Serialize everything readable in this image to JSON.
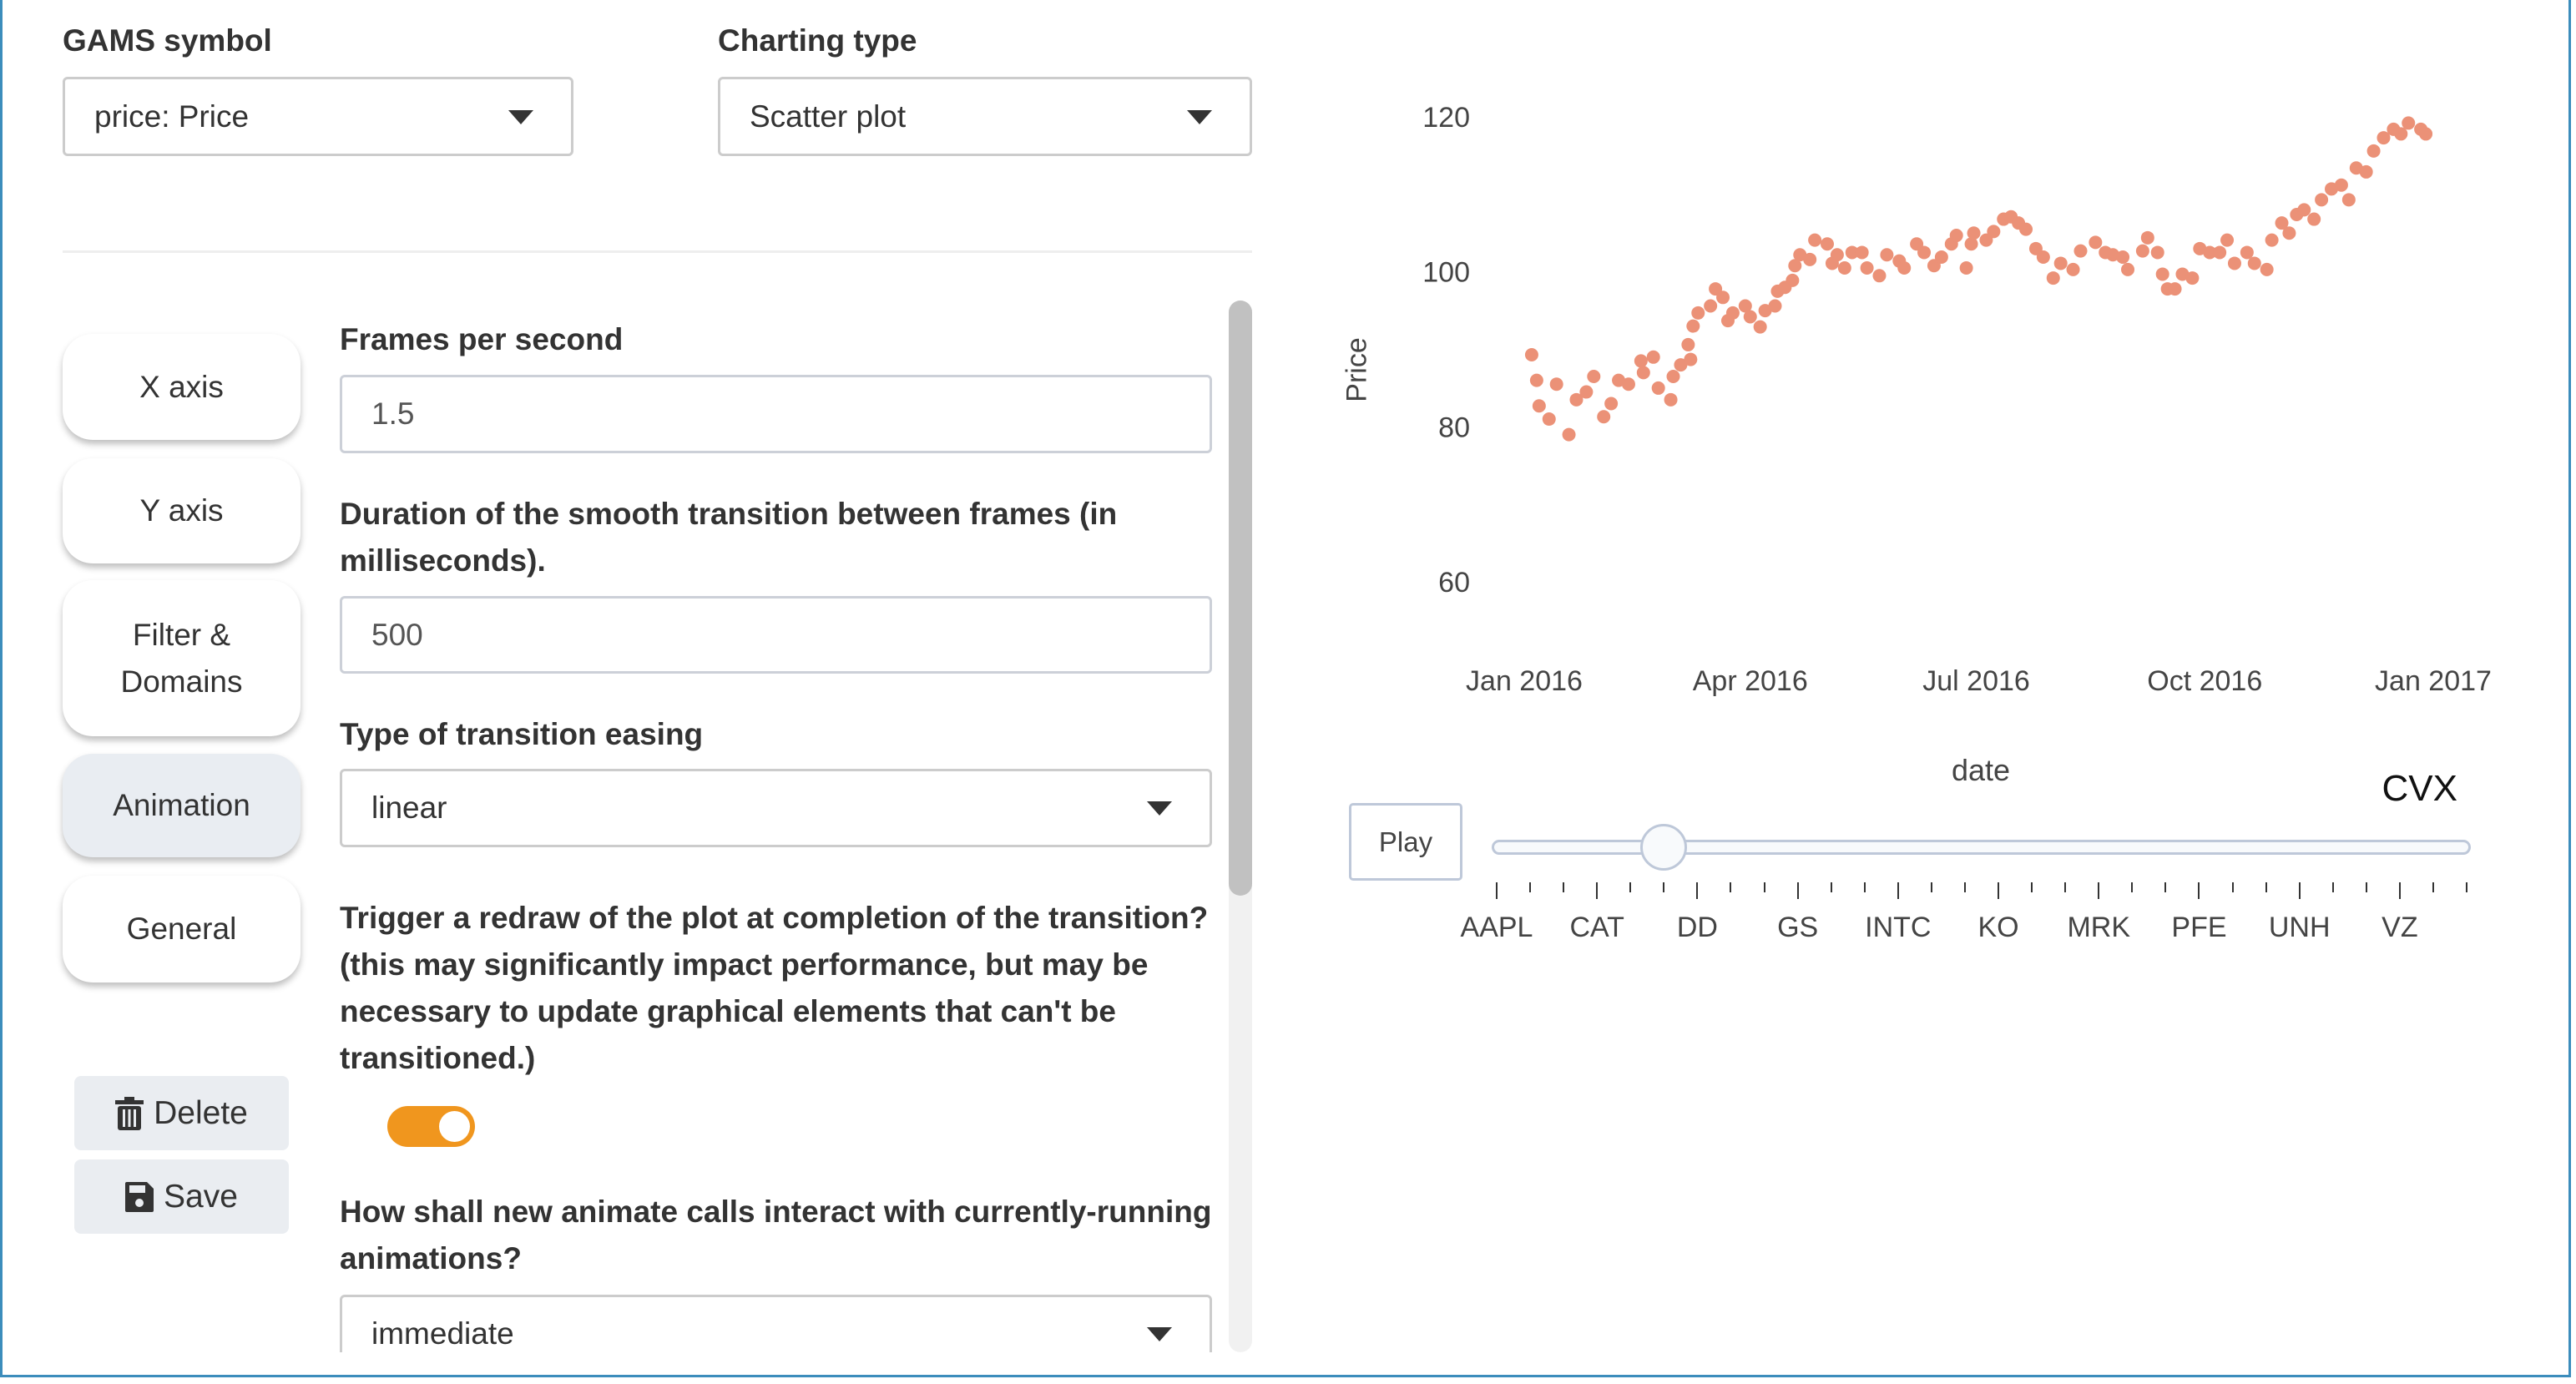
{
  "header": {
    "symbol_label": "GAMS symbol",
    "symbol_value": "price: Price",
    "chart_type_label": "Charting type",
    "chart_type_value": "Scatter plot"
  },
  "tabs": [
    {
      "label": "X axis",
      "active": false
    },
    {
      "label": "Y axis",
      "active": false
    },
    {
      "label": "Filter & Domains",
      "active": false
    },
    {
      "label": "Animation",
      "active": true
    },
    {
      "label": "General",
      "active": false
    }
  ],
  "actions": {
    "delete_label": "Delete",
    "delete_icon": "trash-icon",
    "save_label": "Save",
    "save_icon": "floppy-disk-icon"
  },
  "form": {
    "fps_label": "Frames per second",
    "fps_value": "1.5",
    "duration_label": "Duration of the smooth transition between frames (in milliseconds).",
    "duration_value": "500",
    "easing_label": "Type of transition easing",
    "easing_value": "linear",
    "redraw_label": "Trigger a redraw of the plot at completion of the transition? (this may significantly impact performance, but may be necessary to update graphical elements that can't be transitioned.)",
    "redraw_on": true,
    "mode_label": "How shall new animate calls interact with currently-running animations?",
    "mode_value": "immediate"
  },
  "colors": {
    "accent": "#f0961e",
    "marker": "#eb9177",
    "frame_border": "#3c8dbc"
  },
  "chart_data": {
    "type": "scatter",
    "xlabel": "date",
    "ylabel": "Price",
    "ylim": [
      55,
      122
    ],
    "xlim": [
      "2015-12-15",
      "2017-01-12"
    ],
    "yticks": [
      "60",
      "80",
      "100",
      "120"
    ],
    "xticks": [
      {
        "label": "Jan 2016",
        "date": "2016-01-01"
      },
      {
        "label": "Apr 2016",
        "date": "2016-04-01"
      },
      {
        "label": "Jul 2016",
        "date": "2016-07-01"
      },
      {
        "label": "Oct 2016",
        "date": "2016-10-01"
      },
      {
        "label": "Jan 2017",
        "date": "2017-01-01"
      }
    ],
    "points": [
      [
        "2016-01-04",
        89.3
      ],
      [
        "2016-01-06",
        86
      ],
      [
        "2016-01-07",
        82.7
      ],
      [
        "2016-01-11",
        81
      ],
      [
        "2016-01-14",
        85.5
      ],
      [
        "2016-01-19",
        79
      ],
      [
        "2016-01-22",
        83.5
      ],
      [
        "2016-01-26",
        84.5
      ],
      [
        "2016-01-29",
        86.5
      ],
      [
        "2016-02-02",
        81.3
      ],
      [
        "2016-02-05",
        83
      ],
      [
        "2016-02-08",
        86
      ],
      [
        "2016-02-12",
        85.5
      ],
      [
        "2016-02-17",
        88.5
      ],
      [
        "2016-02-18",
        87
      ],
      [
        "2016-02-22",
        89
      ],
      [
        "2016-02-24",
        85
      ],
      [
        "2016-02-29",
        83.5
      ],
      [
        "2016-03-01",
        86.5
      ],
      [
        "2016-03-04",
        88
      ],
      [
        "2016-03-07",
        90.6
      ],
      [
        "2016-03-08",
        88.7
      ],
      [
        "2016-03-09",
        93
      ],
      [
        "2016-03-11",
        94.7
      ],
      [
        "2016-03-16",
        95.6
      ],
      [
        "2016-03-18",
        97.8
      ],
      [
        "2016-03-21",
        96.7
      ],
      [
        "2016-03-23",
        93.7
      ],
      [
        "2016-03-25",
        94.7
      ],
      [
        "2016-03-30",
        95.6
      ],
      [
        "2016-04-01",
        94.2
      ],
      [
        "2016-04-05",
        92.9
      ],
      [
        "2016-04-07",
        95
      ],
      [
        "2016-04-11",
        95.6
      ],
      [
        "2016-04-12",
        97.5
      ],
      [
        "2016-04-15",
        98
      ],
      [
        "2016-04-18",
        98.9
      ],
      [
        "2016-04-19",
        100.8
      ],
      [
        "2016-04-21",
        102.2
      ],
      [
        "2016-04-25",
        101.6
      ],
      [
        "2016-04-27",
        104.1
      ],
      [
        "2016-05-02",
        103.6
      ],
      [
        "2016-05-04",
        101.1
      ],
      [
        "2016-05-06",
        102.2
      ],
      [
        "2016-05-09",
        100.5
      ],
      [
        "2016-05-12",
        102.5
      ],
      [
        "2016-05-16",
        102.5
      ],
      [
        "2016-05-18",
        100.5
      ],
      [
        "2016-05-23",
        99.5
      ],
      [
        "2016-05-26",
        102.2
      ],
      [
        "2016-05-31",
        101.4
      ],
      [
        "2016-06-02",
        100.5
      ],
      [
        "2016-06-07",
        103.6
      ],
      [
        "2016-06-10",
        102.5
      ],
      [
        "2016-06-14",
        100.8
      ],
      [
        "2016-06-17",
        101.9
      ],
      [
        "2016-06-21",
        103.6
      ],
      [
        "2016-06-23",
        104.7
      ],
      [
        "2016-06-27",
        100.5
      ],
      [
        "2016-06-29",
        103.6
      ],
      [
        "2016-06-30",
        105
      ],
      [
        "2016-07-05",
        104.1
      ],
      [
        "2016-07-08",
        105.2
      ],
      [
        "2016-07-12",
        106.8
      ],
      [
        "2016-07-15",
        107.1
      ],
      [
        "2016-07-18",
        106.3
      ],
      [
        "2016-07-21",
        105.5
      ],
      [
        "2016-07-25",
        103
      ],
      [
        "2016-07-28",
        101.9
      ],
      [
        "2016-08-01",
        99.2
      ],
      [
        "2016-08-04",
        101.1
      ],
      [
        "2016-08-09",
        100.3
      ],
      [
        "2016-08-12",
        102.7
      ],
      [
        "2016-08-18",
        103.8
      ],
      [
        "2016-08-22",
        102.5
      ],
      [
        "2016-08-25",
        102.2
      ],
      [
        "2016-08-29",
        101.9
      ],
      [
        "2016-08-31",
        100.3
      ],
      [
        "2016-09-06",
        102.7
      ],
      [
        "2016-09-08",
        104.4
      ],
      [
        "2016-09-12",
        102.5
      ],
      [
        "2016-09-14",
        99.7
      ],
      [
        "2016-09-16",
        97.8
      ],
      [
        "2016-09-19",
        97.8
      ],
      [
        "2016-09-22",
        99.7
      ],
      [
        "2016-09-26",
        99.2
      ],
      [
        "2016-09-29",
        103
      ],
      [
        "2016-10-03",
        102.5
      ],
      [
        "2016-10-07",
        102.5
      ],
      [
        "2016-10-10",
        104.1
      ],
      [
        "2016-10-13",
        101.1
      ],
      [
        "2016-10-18",
        102.5
      ],
      [
        "2016-10-21",
        101.1
      ],
      [
        "2016-10-26",
        100.3
      ],
      [
        "2016-10-28",
        104.1
      ],
      [
        "2016-11-01",
        106.3
      ],
      [
        "2016-11-04",
        105
      ],
      [
        "2016-11-07",
        107.4
      ],
      [
        "2016-11-10",
        108
      ],
      [
        "2016-11-14",
        106.8
      ],
      [
        "2016-11-17",
        109.3
      ],
      [
        "2016-11-21",
        110.7
      ],
      [
        "2016-11-25",
        111.2
      ],
      [
        "2016-11-28",
        109.3
      ],
      [
        "2016-12-01",
        113.4
      ],
      [
        "2016-12-05",
        112.9
      ],
      [
        "2016-12-08",
        115.6
      ],
      [
        "2016-12-12",
        117.3
      ],
      [
        "2016-12-16",
        118.4
      ],
      [
        "2016-12-19",
        117.8
      ],
      [
        "2016-12-22",
        119.2
      ],
      [
        "2016-12-27",
        118.4
      ],
      [
        "2016-12-29",
        117.8
      ]
    ]
  },
  "animation": {
    "play_label": "Play",
    "current_label": "CVX",
    "current_step": 5,
    "tick_labels": [
      "AAPL",
      "CAT",
      "DD",
      "GS",
      "INTC",
      "KO",
      "MRK",
      "PFE",
      "UNH",
      "VZ"
    ]
  }
}
